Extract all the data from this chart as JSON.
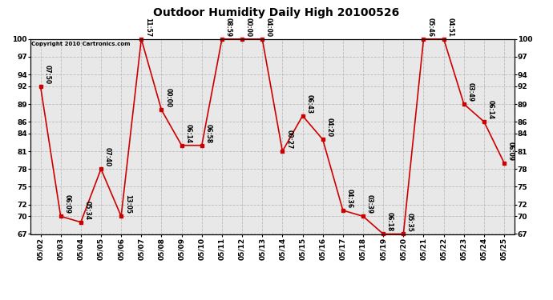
{
  "title": "Outdoor Humidity Daily High 20100526",
  "copyright": "Copyright 2010 Cartronics.com",
  "background_color": "#ffffff",
  "plot_bg_color": "#e8e8e8",
  "line_color": "#cc0000",
  "marker_color": "#cc0000",
  "dates": [
    "05/02",
    "05/03",
    "05/04",
    "05/05",
    "05/06",
    "05/07",
    "05/08",
    "05/09",
    "05/10",
    "05/11",
    "05/12",
    "05/13",
    "05/14",
    "05/15",
    "05/16",
    "05/17",
    "05/18",
    "05/19",
    "05/20",
    "05/21",
    "05/22",
    "05/23",
    "05/24",
    "05/25"
  ],
  "values": [
    92,
    70,
    69,
    78,
    70,
    100,
    88,
    82,
    82,
    100,
    100,
    100,
    81,
    87,
    83,
    71,
    70,
    67,
    67,
    100,
    100,
    89,
    86,
    79
  ],
  "time_labels": [
    "07:50",
    "06:09",
    "05:34",
    "07:40",
    "13:05",
    "11:57",
    "00:00",
    "06:14",
    "06:58",
    "08:59",
    "00:00",
    "04:00",
    "00:27",
    "06:43",
    "04:20",
    "04:36",
    "03:39",
    "06:18",
    "05:35",
    "05:46",
    "04:51",
    "03:49",
    "06:14",
    "06:09"
  ],
  "ylim": [
    67,
    100
  ],
  "yticks": [
    67,
    70,
    72,
    75,
    78,
    81,
    84,
    86,
    89,
    92,
    94,
    97,
    100
  ],
  "grid_color": "#bbbbbb",
  "title_fontsize": 10,
  "label_fontsize": 5.5,
  "tick_fontsize": 6.5,
  "copyright_fontsize": 5,
  "marker_size": 3,
  "line_width": 1.2
}
